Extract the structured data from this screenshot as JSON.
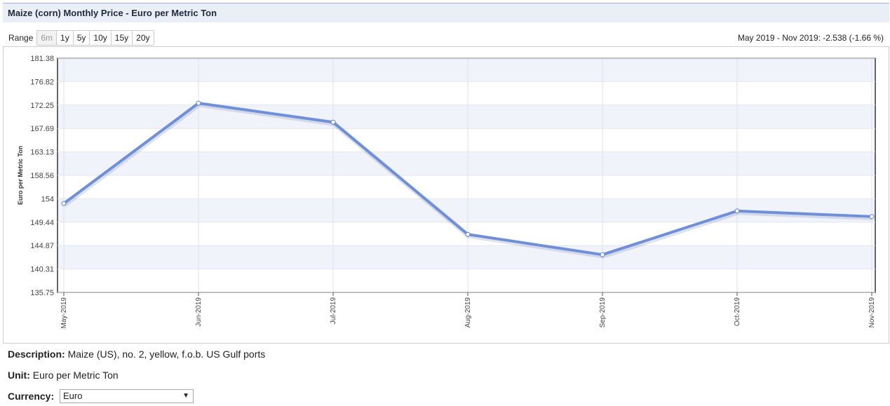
{
  "title": "Maize (corn) Monthly Price - Euro per Metric Ton",
  "range": {
    "label": "Range",
    "buttons": [
      "6m",
      "1y",
      "5y",
      "10y",
      "15y",
      "20y"
    ],
    "active": "6m"
  },
  "change_summary": "May 2019 - Nov 2019: -2.538 (-1.66 %)",
  "chart_data": {
    "type": "line",
    "title": "",
    "xlabel": "",
    "ylabel": "Euro per Metric Ton",
    "categories": [
      "May-2019",
      "Jun-2019",
      "Jul-2019",
      "Aug-2019",
      "Sep-2019",
      "Oct-2019",
      "Nov-2019"
    ],
    "series": [
      {
        "values": [
          153.07,
          172.62,
          168.91,
          147.05,
          143.1,
          151.61,
          150.53
        ]
      }
    ],
    "y_ticks": [
      "181.38",
      "176.82",
      "172.25",
      "167.69",
      "163.13",
      "158.56",
      "154",
      "149.44",
      "144.87",
      "140.31",
      "135.75"
    ],
    "ylim": [
      135.75,
      181.38
    ],
    "grid": true,
    "line_color": "#6f8fd8",
    "band_color": "#f1f3fb"
  },
  "description": {
    "label": "Description:",
    "value": "Maize (US), no. 2, yellow, f.o.b. US Gulf ports"
  },
  "unit": {
    "label": "Unit:",
    "value": "Euro per Metric Ton"
  },
  "currency": {
    "label": "Currency:",
    "value": "Euro"
  }
}
